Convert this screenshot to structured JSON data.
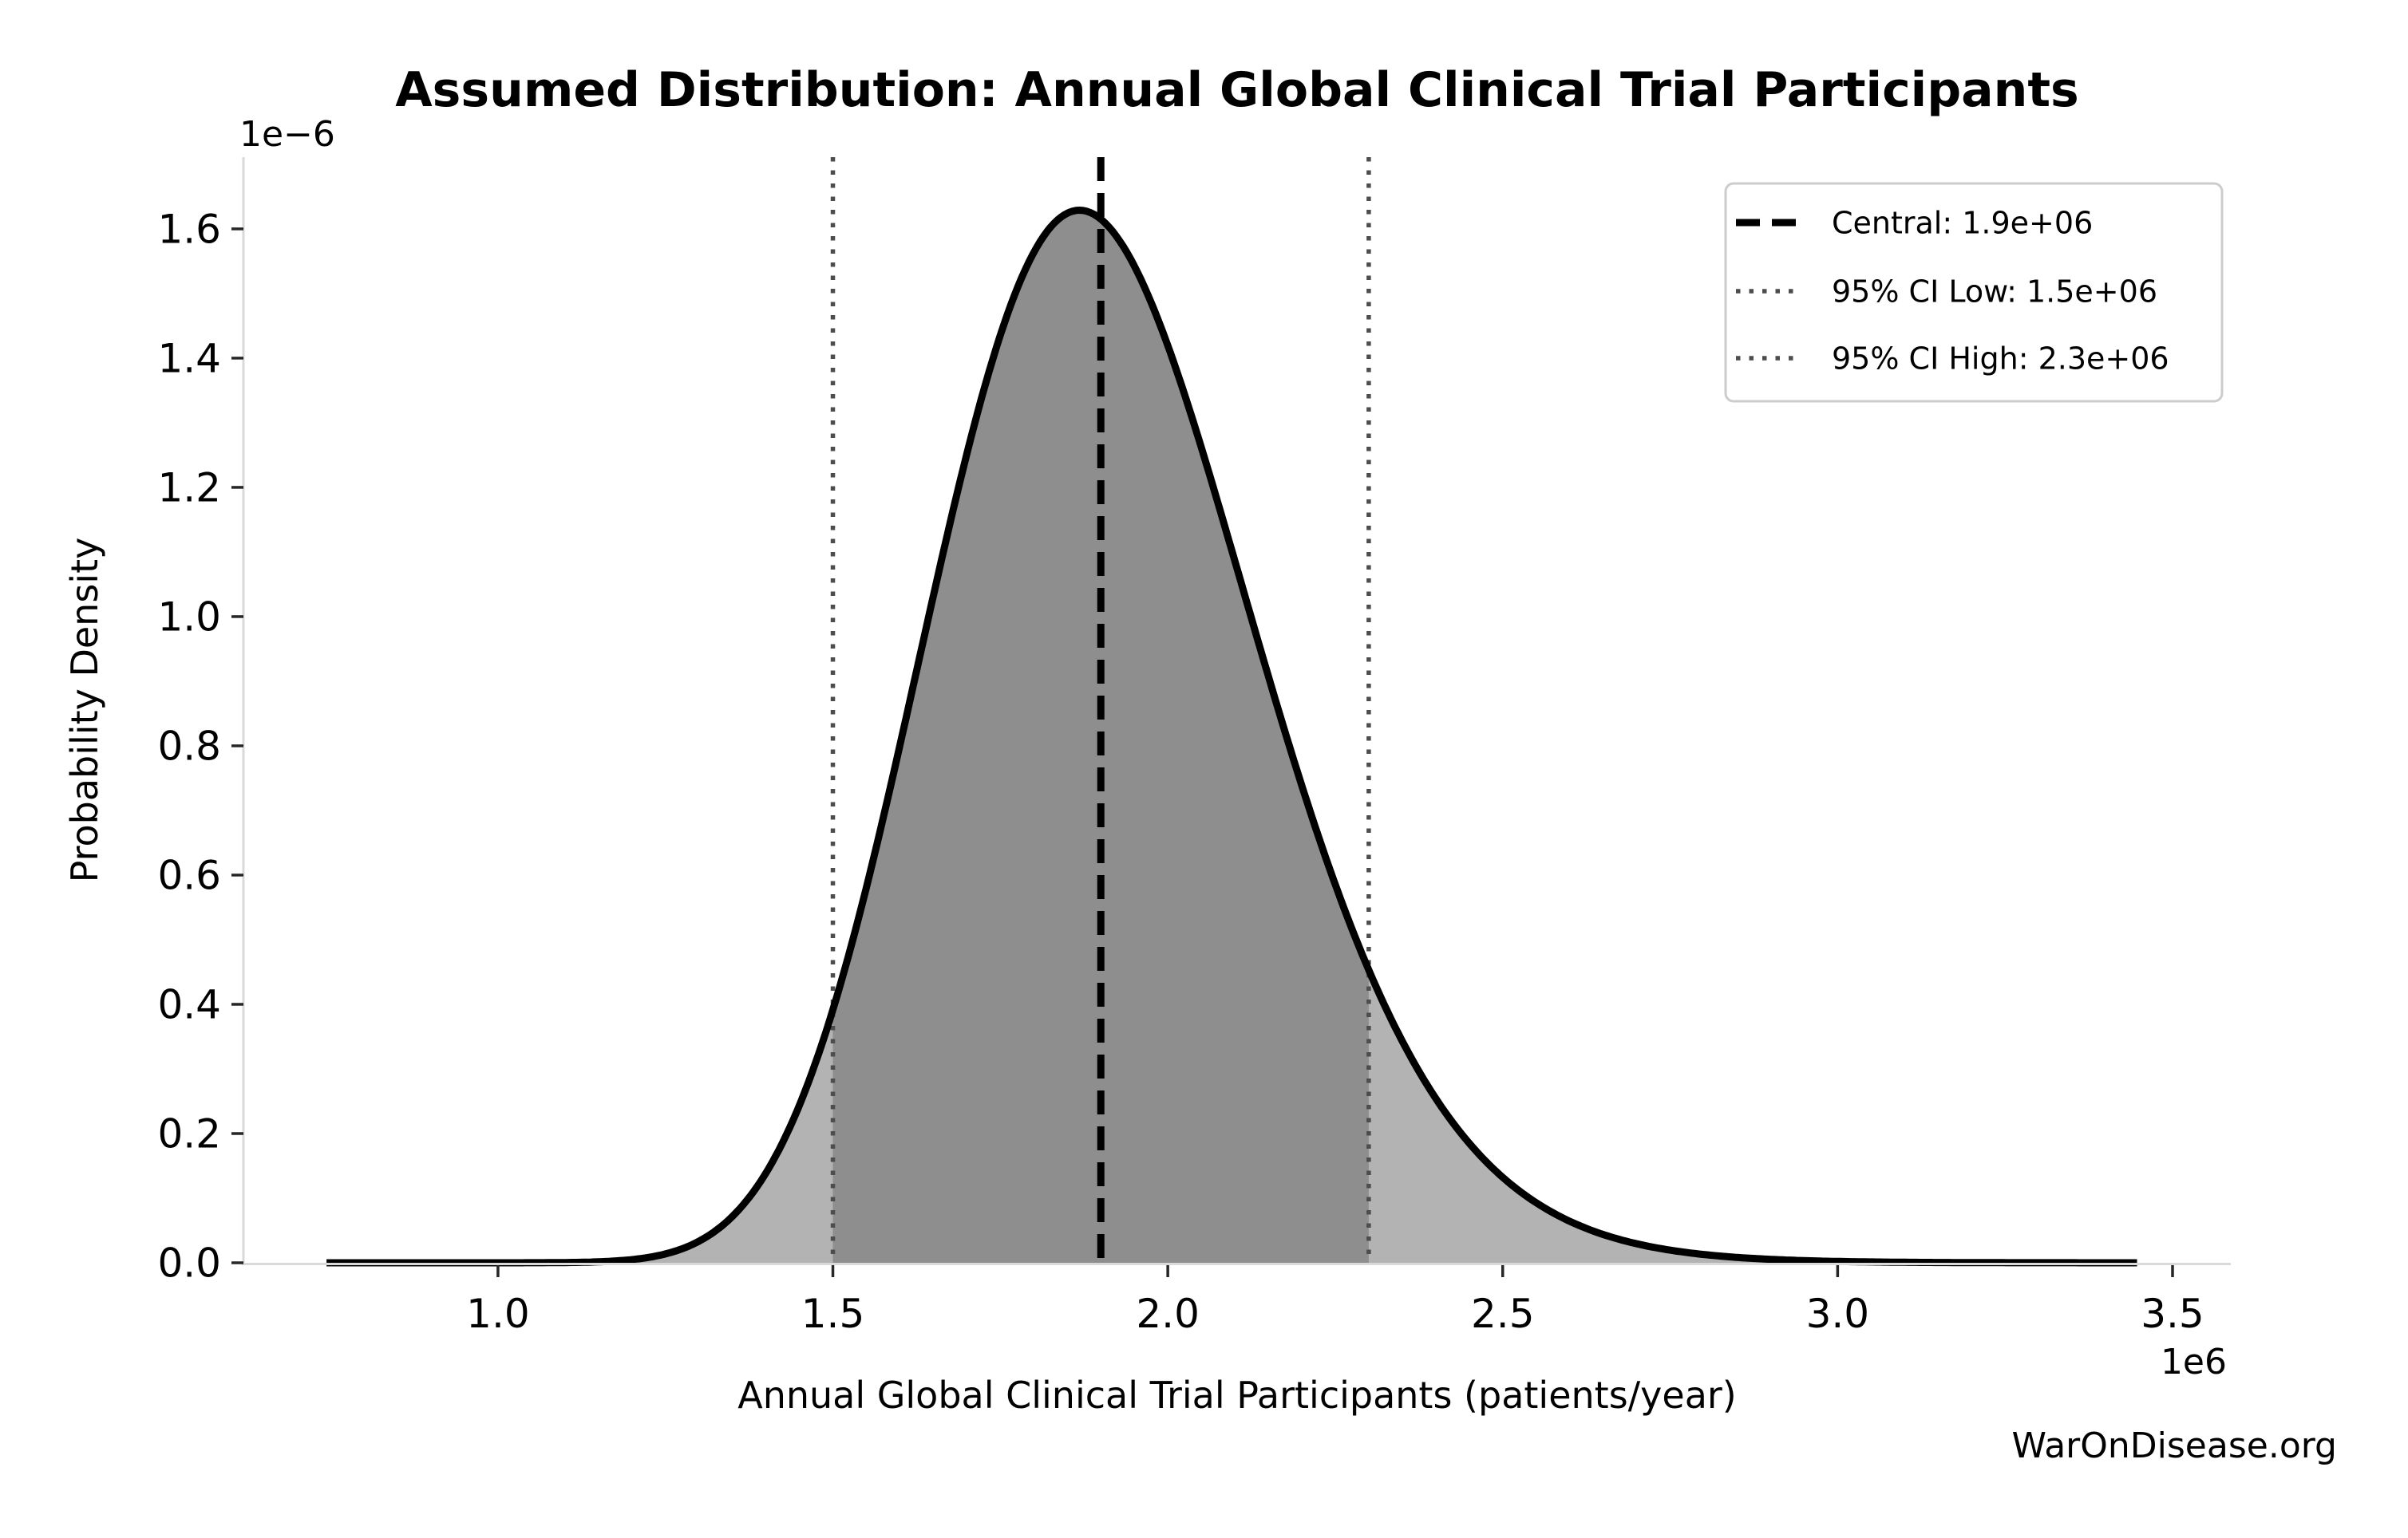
{
  "figure": {
    "watermark": "WarOnDisease.org"
  },
  "chart_data": {
    "type": "area",
    "subtype": "probability-density-curve",
    "title": "Assumed Distribution: Annual Global Clinical Trial Participants",
    "xlabel": "Annual Global Clinical Trial Participants (patients/year)",
    "ylabel": "Probability Density",
    "x_scale_note": "1e6",
    "y_scale_note": "1e−6",
    "x_units": 1000000,
    "y_units": 1e-06,
    "xlim": [
      0.62,
      3.587
    ],
    "ylim": [
      0,
      1.711
    ],
    "x_ticks": [
      1.0,
      1.5,
      2.0,
      2.5,
      3.0,
      3.5
    ],
    "y_ticks": [
      0.0,
      0.2,
      0.4,
      0.6,
      0.8,
      1.0,
      1.2,
      1.4,
      1.6
    ],
    "grid": false,
    "legend_position": "upper right",
    "distribution": {
      "family": "lognormal",
      "median": 1.9,
      "sigma_log": 0.13,
      "domain": [
        0.744,
        3.447
      ],
      "peak_x": 1.87,
      "peak_density": 1.63
    },
    "central": {
      "value": 1.9,
      "legend_label": "Central: 1.9e+06"
    },
    "ci_low": {
      "value": 1.5,
      "legend_label": "95% CI Low: 1.5e+06"
    },
    "ci_high": {
      "value": 2.3,
      "legend_label": "95% CI High: 2.3e+06"
    },
    "colors": {
      "curve": "#000000",
      "fill_outer": "#b3b3b3",
      "fill_ci": "#8e8e8e",
      "central_line": "#000000",
      "ci_line": "#4d4d4d",
      "spine": "#d9d9d9",
      "tick": "#262626",
      "text": "#000000",
      "legend_border": "#cccccc",
      "legend_background": "#ffffff",
      "watermark": "#404040",
      "background": "#ffffff"
    }
  }
}
